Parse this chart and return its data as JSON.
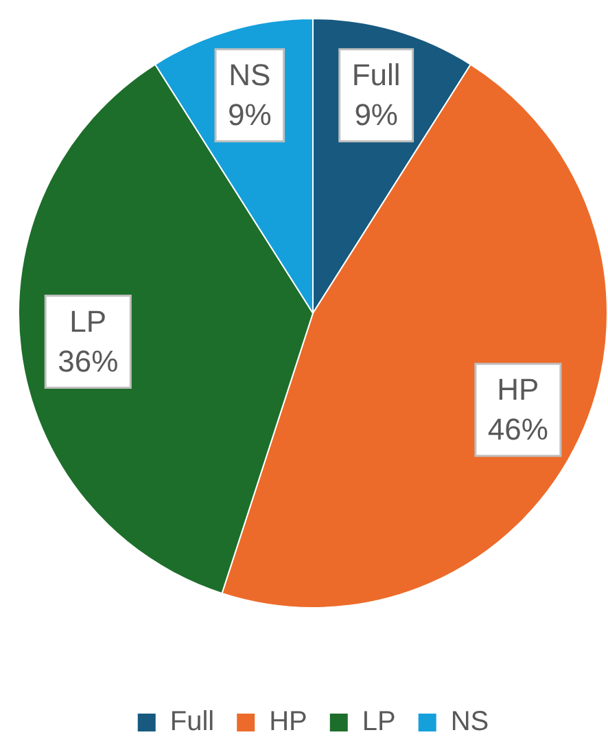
{
  "chart_data": {
    "type": "pie",
    "categories": [
      "Full",
      "HP",
      "LP",
      "NS"
    ],
    "values": [
      9,
      46,
      36,
      9
    ],
    "colors": [
      "#17597f",
      "#ec6b2a",
      "#1d6e2a",
      "#15a0dc"
    ],
    "value_labels": [
      "9%",
      "46%",
      "36%",
      "9%"
    ],
    "legend": "bottom"
  }
}
